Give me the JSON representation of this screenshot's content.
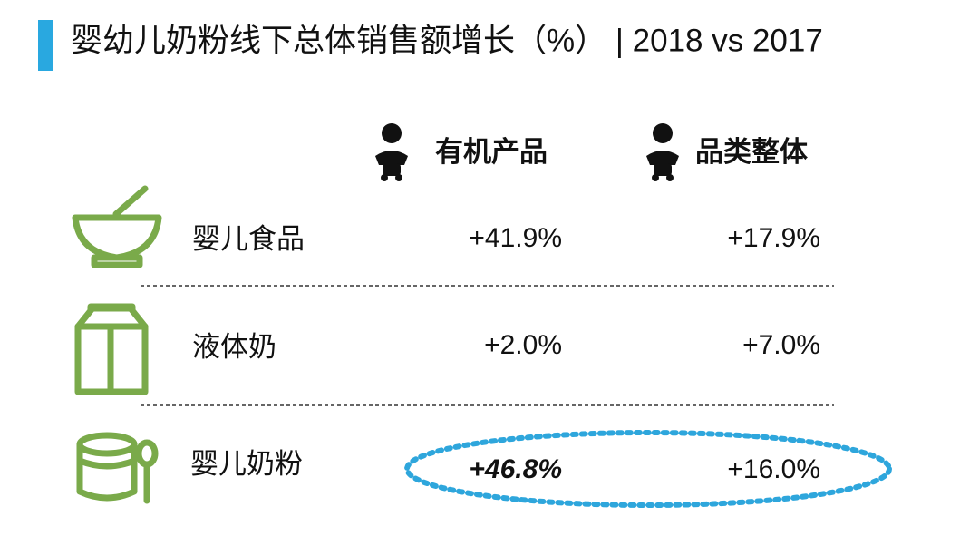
{
  "header": {
    "title": "婴幼儿奶粉线下总体销售额增长（%） | 2018 vs 2017"
  },
  "table": {
    "columns": [
      "有机产品",
      "品类整体"
    ],
    "rows": [
      [
        "婴儿食品",
        "+41.9%",
        "+17.9%"
      ],
      [
        "液体奶",
        "+2.0%",
        "+7.0%"
      ],
      [
        "婴儿奶粉",
        "+46.8%",
        "+16.0%"
      ]
    ]
  }
}
